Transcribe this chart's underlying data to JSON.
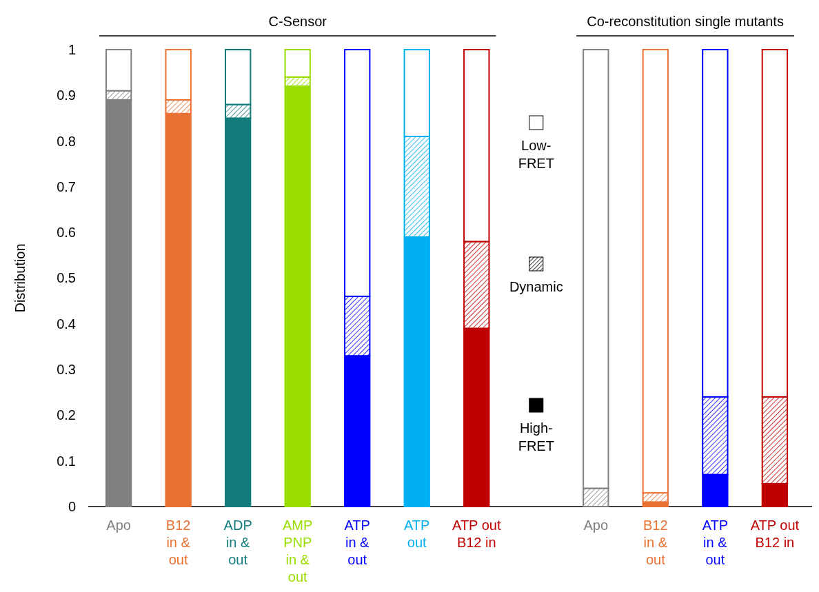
{
  "chart_data": {
    "type": "bar",
    "stacked": true,
    "ylabel": "Distribution",
    "categories": [
      "Apo",
      "B12\nin &\nout",
      "ADP\nin &\nout",
      "AMP\nPNP\nin &\nout",
      "ATP\nin &\nout",
      "ATP\nout",
      "ATP out\nB12 in",
      null,
      "Apo",
      "B12\nin &\nout",
      "ATP\nin &\nout",
      "ATP out\nB12 in"
    ],
    "series": [
      {
        "name": "High-\nFRET",
        "colors": [
          "#808080",
          "#e97132",
          "#127c7c",
          "#99dd00",
          "#0000ff",
          "#00b0f0",
          "#c00000",
          null,
          "#808080",
          "#e97132",
          "#0000ff",
          "#c00000"
        ],
        "values": [
          0.89,
          0.86,
          0.85,
          0.92,
          0.33,
          0.59,
          0.39,
          null,
          0,
          0.01,
          0.07,
          0.05
        ]
      },
      {
        "name": "Dynamic",
        "colors": [
          "#808080",
          "#e97132",
          "#127c7c",
          "#99dd00",
          "#0000ff",
          "#00b0f0",
          "#c00000",
          null,
          "#808080",
          "#e97132",
          "#0000ff",
          "#c00000"
        ],
        "values": [
          0.02,
          0.03,
          0.03,
          0.02,
          0.13,
          0.22,
          0.19,
          null,
          0.04,
          0.02,
          0.17,
          0.19
        ]
      },
      {
        "name": "Low-\nFRET",
        "colors": [
          "#808080",
          "#e97132",
          "#127c7c",
          "#99dd00",
          "#0000ff",
          "#00b0f0",
          "#c00000",
          null,
          "#808080",
          "#e97132",
          "#0000ff",
          "#c00000"
        ],
        "values": [
          0.09,
          0.11,
          0.12,
          0.06,
          0.54,
          0.19,
          0.42,
          null,
          0.96,
          0.97,
          0.76,
          0.76
        ]
      }
    ],
    "ylim": [
      0,
      1
    ],
    "yticks": [
      0,
      0.1,
      0.2,
      0.3,
      0.4,
      0.5,
      0.6,
      0.7,
      0.8,
      0.9,
      1
    ],
    "annotations": [
      "C-Sensor",
      "Co-reconstitution single mutants"
    ],
    "legend": "center"
  }
}
